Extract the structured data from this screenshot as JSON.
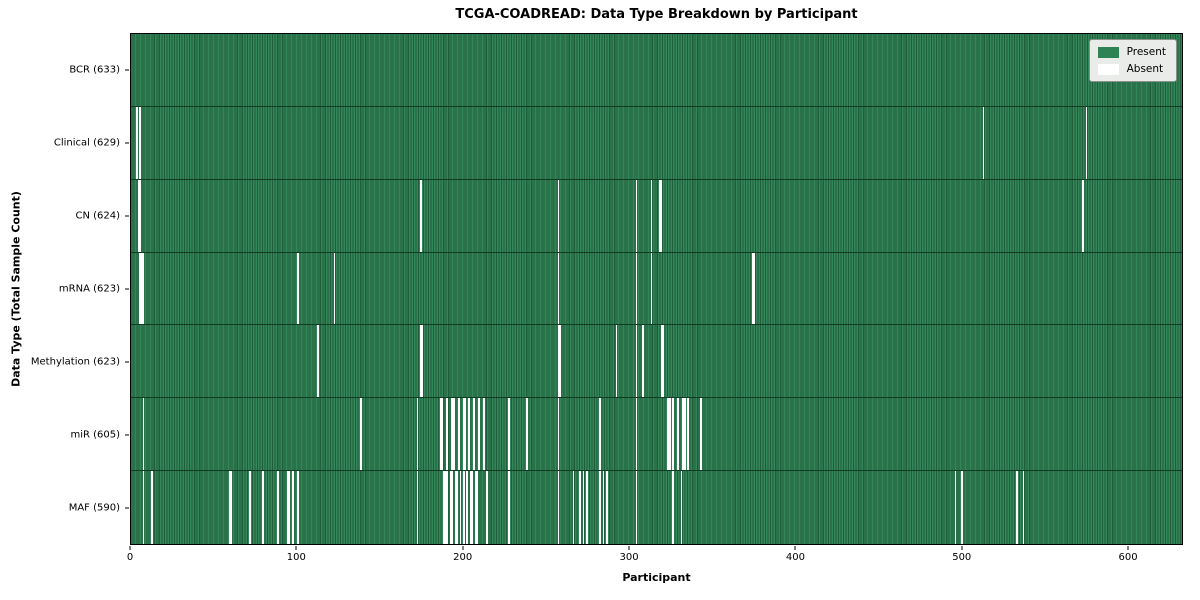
{
  "title": "TCGA-COADREAD: Data Type Breakdown by Participant",
  "axes": {
    "x_label": "Participant",
    "y_label": "Data Type (Total Sample Count)",
    "x_ticks": [
      0,
      100,
      200,
      300,
      400,
      500,
      600
    ],
    "x_range": [
      0,
      633
    ]
  },
  "legend": {
    "items": [
      {
        "label": "Present",
        "color": "#2e8254"
      },
      {
        "label": "Absent",
        "color": "#ffffff"
      }
    ]
  },
  "colors": {
    "present": "#2e8254",
    "present_light": "#35855a",
    "present_dark": "#1d5f3a",
    "absent": "#ffffff",
    "legend_background": "#e9ece8",
    "plot_border": "#000000"
  },
  "chart_data": {
    "type": "heatmap",
    "title": "TCGA-COADREAD: Data Type Breakdown by Participant",
    "xlabel": "Participant",
    "ylabel": "Data Type (Total Sample Count)",
    "x_range": [
      0,
      633
    ],
    "x_ticks": [
      0,
      100,
      200,
      300,
      400,
      500,
      600
    ],
    "total_participants": 633,
    "legend": [
      "Present",
      "Absent"
    ],
    "legend_position": "upper right",
    "grid": false,
    "rows": [
      {
        "name": "BCR",
        "label": "BCR (633)",
        "present_count": 633,
        "absent_participants": []
      },
      {
        "name": "Clinical",
        "label": "Clinical (629)",
        "present_count": 629,
        "absent_participants": [
          3,
          5,
          513,
          575
        ]
      },
      {
        "name": "CN",
        "label": "CN (624)",
        "present_count": 624,
        "absent_participants": [
          4,
          5,
          174,
          257,
          304,
          313,
          318,
          319,
          573
        ]
      },
      {
        "name": "mRNA",
        "label": "mRNA (623)",
        "present_count": 623,
        "absent_participants": [
          5,
          6,
          7,
          100,
          122,
          257,
          304,
          313,
          374,
          375
        ]
      },
      {
        "name": "Methylation",
        "label": "Methylation (623)",
        "present_count": 623,
        "absent_participants": [
          112,
          174,
          175,
          257,
          258,
          292,
          304,
          308,
          319,
          320
        ]
      },
      {
        "name": "miR",
        "label": "miR (605)",
        "present_count": 605,
        "absent_participants": [
          7,
          138,
          172,
          186,
          187,
          190,
          193,
          194,
          197,
          200,
          201,
          203,
          206,
          209,
          212,
          227,
          238,
          257,
          282,
          304,
          323,
          324,
          326,
          329,
          332,
          333,
          335,
          343
        ]
      },
      {
        "name": "MAF",
        "label": "MAF (590)",
        "present_count": 590,
        "absent_participants": [
          7,
          12,
          59,
          60,
          71,
          79,
          88,
          94,
          95,
          97,
          100,
          172,
          188,
          189,
          190,
          192,
          193,
          195,
          196,
          198,
          200,
          202,
          204,
          205,
          207,
          208,
          214,
          227,
          257,
          266,
          270,
          272,
          274,
          282,
          284,
          286,
          304,
          326,
          331,
          496,
          500,
          533,
          537
        ]
      }
    ]
  }
}
